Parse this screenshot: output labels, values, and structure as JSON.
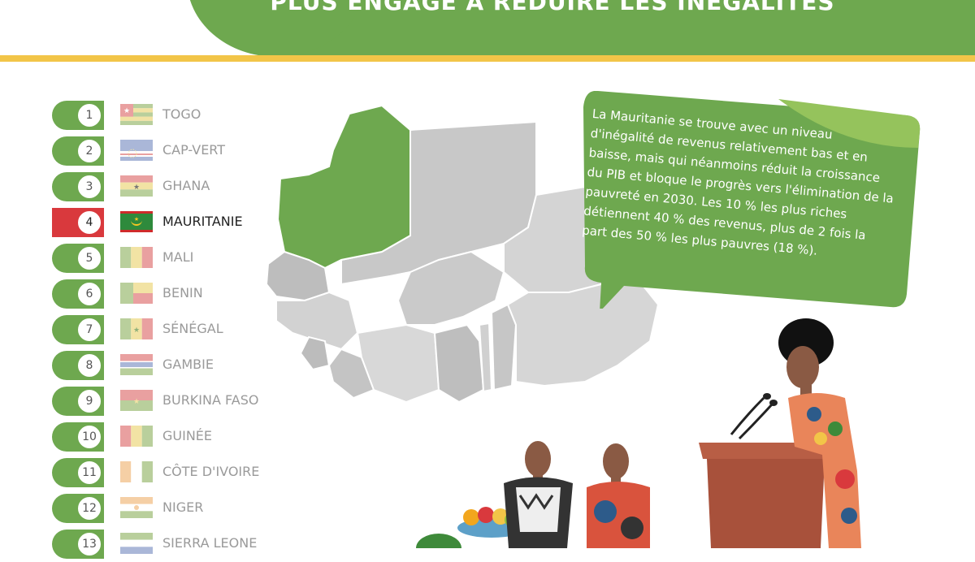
{
  "header": {
    "title": "PLUS ENGAGÉ À RÉDUIRE LES INÉGALITÉS"
  },
  "ranking": [
    {
      "rank": "1",
      "country": "TOGO",
      "active": false
    },
    {
      "rank": "2",
      "country": "CAP-VERT",
      "active": false
    },
    {
      "rank": "3",
      "country": "GHANA",
      "active": false
    },
    {
      "rank": "4",
      "country": "MAURITANIE",
      "active": true
    },
    {
      "rank": "5",
      "country": "MALI",
      "active": false
    },
    {
      "rank": "6",
      "country": "BENIN",
      "active": false
    },
    {
      "rank": "7",
      "country": "SÉNÉGAL",
      "active": false
    },
    {
      "rank": "8",
      "country": "GAMBIE",
      "active": false
    },
    {
      "rank": "9",
      "country": "BURKINA FASO",
      "active": false
    },
    {
      "rank": "10",
      "country": "GUINÉE",
      "active": false
    },
    {
      "rank": "11",
      "country": "CÔTE D'IVOIRE",
      "active": false
    },
    {
      "rank": "12",
      "country": "NIGER",
      "active": false
    },
    {
      "rank": "13",
      "country": "SIERRA LEONE",
      "active": false
    }
  ],
  "info": {
    "text": "La Mauritanie se trouve avec un niveau d'inégalité de revenus relativement bas et en baisse, mais qui néanmoins réduit la croissance du PIB et bloque le progrès vers l'élimination de la pauvreté en 2030. Les 10 % les plus riches détiennent 40 % des revenus, plus de 2 fois la part des 50 % les plus pauvres (18 %)."
  },
  "colors": {
    "green": "#6ea84f",
    "light_green": "#95c35c",
    "red": "#d9393d",
    "yellow": "#f2c548",
    "map_gray": "#c8c8c8"
  }
}
